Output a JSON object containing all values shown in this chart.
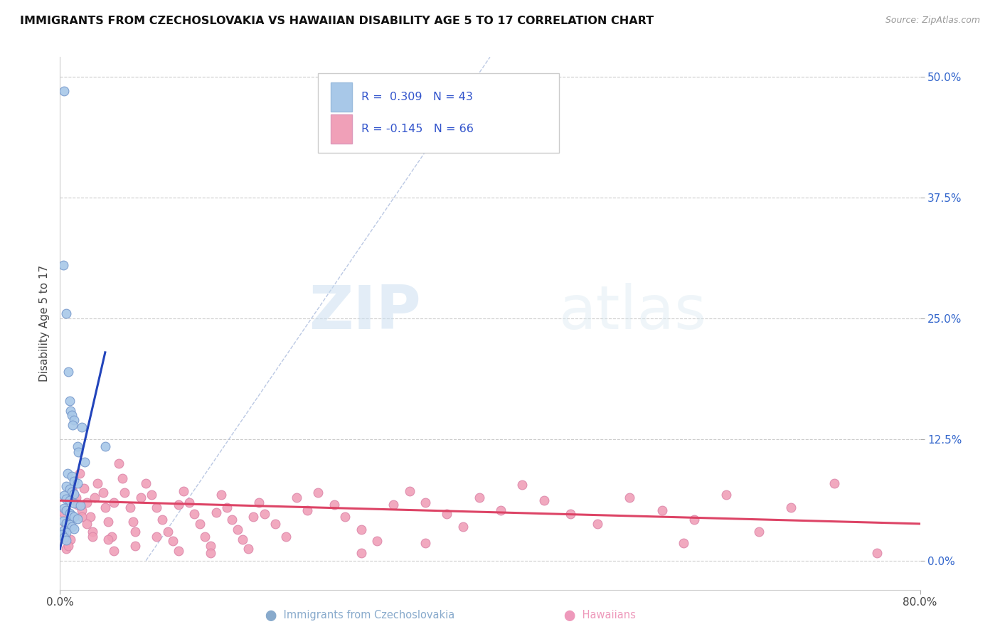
{
  "title": "IMMIGRANTS FROM CZECHOSLOVAKIA VS HAWAIIAN DISABILITY AGE 5 TO 17 CORRELATION CHART",
  "source_text": "Source: ZipAtlas.com",
  "ylabel": "Disability Age 5 to 17",
  "xlim": [
    0.0,
    0.8
  ],
  "ylim": [
    -0.03,
    0.52
  ],
  "ytick_labels": [
    "0.0%",
    "12.5%",
    "25.0%",
    "37.5%",
    "50.0%"
  ],
  "ytick_values": [
    0.0,
    0.125,
    0.25,
    0.375,
    0.5
  ],
  "watermark_zip": "ZIP",
  "watermark_atlas": "atlas",
  "blue_color": "#a8c8e8",
  "pink_color": "#f0a0b8",
  "blue_line_color": "#2244bb",
  "pink_line_color": "#dd4466",
  "blue_scatter": [
    [
      0.004,
      0.485
    ],
    [
      0.003,
      0.305
    ],
    [
      0.006,
      0.255
    ],
    [
      0.008,
      0.195
    ],
    [
      0.009,
      0.165
    ],
    [
      0.01,
      0.155
    ],
    [
      0.011,
      0.15
    ],
    [
      0.013,
      0.145
    ],
    [
      0.012,
      0.14
    ],
    [
      0.016,
      0.118
    ],
    [
      0.017,
      0.112
    ],
    [
      0.02,
      0.138
    ],
    [
      0.023,
      0.102
    ],
    [
      0.007,
      0.09
    ],
    [
      0.011,
      0.087
    ],
    [
      0.013,
      0.082
    ],
    [
      0.016,
      0.08
    ],
    [
      0.006,
      0.077
    ],
    [
      0.009,
      0.074
    ],
    [
      0.011,
      0.071
    ],
    [
      0.013,
      0.069
    ],
    [
      0.004,
      0.067
    ],
    [
      0.006,
      0.064
    ],
    [
      0.009,
      0.062
    ],
    [
      0.013,
      0.059
    ],
    [
      0.019,
      0.057
    ],
    [
      0.004,
      0.054
    ],
    [
      0.006,
      0.052
    ],
    [
      0.009,
      0.049
    ],
    [
      0.011,
      0.047
    ],
    [
      0.013,
      0.045
    ],
    [
      0.016,
      0.043
    ],
    [
      0.003,
      0.041
    ],
    [
      0.006,
      0.039
    ],
    [
      0.009,
      0.037
    ],
    [
      0.011,
      0.035
    ],
    [
      0.013,
      0.033
    ],
    [
      0.004,
      0.031
    ],
    [
      0.006,
      0.029
    ],
    [
      0.042,
      0.118
    ],
    [
      0.002,
      0.027
    ],
    [
      0.004,
      0.024
    ],
    [
      0.006,
      0.021
    ]
  ],
  "pink_scatter": [
    [
      0.018,
      0.09
    ],
    [
      0.022,
      0.075
    ],
    [
      0.025,
      0.06
    ],
    [
      0.028,
      0.045
    ],
    [
      0.03,
      0.03
    ],
    [
      0.032,
      0.065
    ],
    [
      0.035,
      0.08
    ],
    [
      0.04,
      0.07
    ],
    [
      0.042,
      0.055
    ],
    [
      0.045,
      0.04
    ],
    [
      0.048,
      0.025
    ],
    [
      0.05,
      0.06
    ],
    [
      0.055,
      0.1
    ],
    [
      0.058,
      0.085
    ],
    [
      0.06,
      0.07
    ],
    [
      0.065,
      0.055
    ],
    [
      0.068,
      0.04
    ],
    [
      0.07,
      0.03
    ],
    [
      0.075,
      0.065
    ],
    [
      0.08,
      0.08
    ],
    [
      0.085,
      0.068
    ],
    [
      0.09,
      0.055
    ],
    [
      0.095,
      0.042
    ],
    [
      0.1,
      0.03
    ],
    [
      0.105,
      0.02
    ],
    [
      0.11,
      0.058
    ],
    [
      0.115,
      0.072
    ],
    [
      0.12,
      0.06
    ],
    [
      0.125,
      0.048
    ],
    [
      0.13,
      0.038
    ],
    [
      0.135,
      0.025
    ],
    [
      0.14,
      0.015
    ],
    [
      0.145,
      0.05
    ],
    [
      0.15,
      0.068
    ],
    [
      0.155,
      0.055
    ],
    [
      0.16,
      0.042
    ],
    [
      0.165,
      0.032
    ],
    [
      0.17,
      0.022
    ],
    [
      0.175,
      0.012
    ],
    [
      0.18,
      0.045
    ],
    [
      0.185,
      0.06
    ],
    [
      0.19,
      0.048
    ],
    [
      0.2,
      0.038
    ],
    [
      0.21,
      0.025
    ],
    [
      0.22,
      0.065
    ],
    [
      0.23,
      0.052
    ],
    [
      0.24,
      0.07
    ],
    [
      0.255,
      0.058
    ],
    [
      0.265,
      0.045
    ],
    [
      0.28,
      0.032
    ],
    [
      0.295,
      0.02
    ],
    [
      0.31,
      0.058
    ],
    [
      0.325,
      0.072
    ],
    [
      0.34,
      0.06
    ],
    [
      0.36,
      0.048
    ],
    [
      0.375,
      0.035
    ],
    [
      0.39,
      0.065
    ],
    [
      0.41,
      0.052
    ],
    [
      0.43,
      0.078
    ],
    [
      0.45,
      0.062
    ],
    [
      0.475,
      0.048
    ],
    [
      0.5,
      0.038
    ],
    [
      0.53,
      0.065
    ],
    [
      0.56,
      0.052
    ],
    [
      0.59,
      0.042
    ],
    [
      0.62,
      0.068
    ],
    [
      0.65,
      0.03
    ],
    [
      0.68,
      0.055
    ],
    [
      0.72,
      0.08
    ],
    [
      0.015,
      0.065
    ],
    [
      0.02,
      0.052
    ],
    [
      0.025,
      0.038
    ],
    [
      0.03,
      0.025
    ],
    [
      0.012,
      0.072
    ],
    [
      0.016,
      0.058
    ],
    [
      0.02,
      0.045
    ],
    [
      0.008,
      0.035
    ],
    [
      0.01,
      0.022
    ],
    [
      0.006,
      0.012
    ],
    [
      0.045,
      0.022
    ],
    [
      0.05,
      0.01
    ],
    [
      0.07,
      0.015
    ],
    [
      0.09,
      0.025
    ],
    [
      0.11,
      0.01
    ],
    [
      0.14,
      0.008
    ],
    [
      0.003,
      0.05
    ],
    [
      0.005,
      0.038
    ],
    [
      0.005,
      0.025
    ],
    [
      0.008,
      0.015
    ],
    [
      0.28,
      0.008
    ],
    [
      0.34,
      0.018
    ],
    [
      0.58,
      0.018
    ],
    [
      0.76,
      0.008
    ]
  ],
  "blue_line": [
    [
      0.0,
      0.012
    ],
    [
      0.042,
      0.215
    ]
  ],
  "pink_line": [
    [
      0.0,
      0.062
    ],
    [
      0.8,
      0.038
    ]
  ],
  "dash_line": [
    [
      0.08,
      0.0
    ],
    [
      0.4,
      0.52
    ]
  ]
}
